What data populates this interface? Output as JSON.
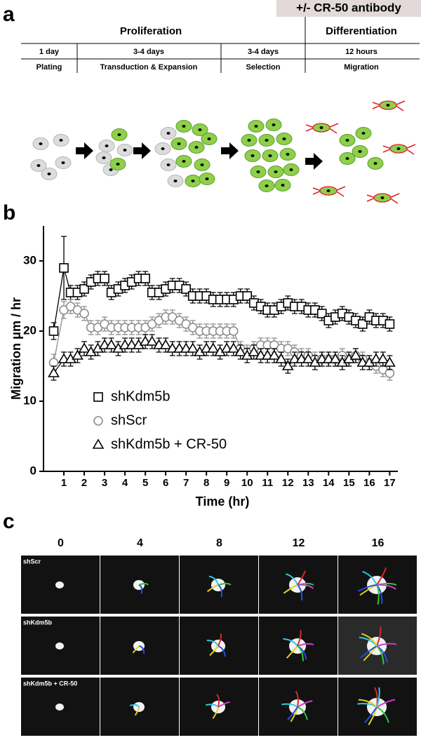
{
  "panel_a": {
    "label": "a",
    "banner": "+/- CR-50 antibody",
    "phases": [
      "Proliferation",
      "Differentiation"
    ],
    "steps": [
      {
        "duration": "1 day",
        "name": "Plating"
      },
      {
        "duration": "3-4 days",
        "name": "Transduction & Expansion"
      },
      {
        "duration": "3-4 days",
        "name": "Selection"
      },
      {
        "duration": "12 hours",
        "name": "Migration"
      }
    ]
  },
  "chart_data": {
    "type": "line",
    "panel_label": "b",
    "xlabel": "Time (hr)",
    "ylabel": "Migration μm / hr",
    "x": [
      0.5,
      1,
      1.33,
      1.67,
      2,
      2.33,
      2.67,
      3,
      3.33,
      3.67,
      4,
      4.33,
      4.67,
      5,
      5.33,
      5.67,
      6,
      6.33,
      6.67,
      7,
      7.33,
      7.67,
      8,
      8.33,
      8.67,
      9,
      9.33,
      9.67,
      10,
      10.33,
      10.67,
      11,
      11.33,
      11.67,
      12,
      12.33,
      12.67,
      13,
      13.33,
      13.67,
      14,
      14.33,
      14.67,
      15,
      15.33,
      15.67,
      16,
      16.33,
      16.67,
      17
    ],
    "series": [
      {
        "name": "shKdm5b",
        "color": "#000000",
        "marker": "square",
        "values": [
          20,
          29,
          25.5,
          25.5,
          26,
          27,
          27.5,
          27.5,
          25.5,
          26,
          26.5,
          27,
          27.5,
          27.5,
          25.5,
          25.5,
          26,
          26.5,
          26.5,
          26,
          25,
          25,
          25,
          24.5,
          24.5,
          24.5,
          24.5,
          25,
          25,
          24,
          23.5,
          23,
          23,
          23.5,
          24,
          23.5,
          23.5,
          23,
          23,
          22.5,
          21.5,
          22,
          22.5,
          22,
          21.5,
          21,
          22,
          21.5,
          21.5,
          21
        ],
        "errors": [
          1.2,
          4.5,
          1,
          1,
          1,
          1,
          1,
          1,
          1,
          1,
          1,
          1,
          1,
          1,
          1,
          1,
          1,
          1,
          1,
          1,
          1,
          1,
          1,
          1,
          1,
          1,
          1,
          1,
          1,
          1,
          1,
          1,
          1,
          1,
          1,
          1,
          1,
          1,
          1,
          1,
          1,
          1,
          1,
          1,
          1,
          1,
          1,
          1,
          1,
          1
        ]
      },
      {
        "name": "shScr",
        "color": "#8c8c8c",
        "marker": "circle",
        "values": [
          15.5,
          23,
          23.5,
          23,
          22.5,
          20.5,
          20.5,
          21,
          20.5,
          20.5,
          20.5,
          20.5,
          20.5,
          20.5,
          21,
          21.5,
          22,
          22,
          21.5,
          21,
          20.5,
          20,
          20,
          20,
          20,
          20,
          20,
          17.5,
          17,
          17.5,
          18,
          18,
          18,
          17.5,
          17.5,
          17,
          16.5,
          16.5,
          16,
          16,
          16,
          16,
          16.5,
          16,
          16.5,
          16,
          15.5,
          15,
          14.5,
          14
        ],
        "errors": [
          1.2,
          1.2,
          1,
          1,
          1,
          1,
          1,
          1,
          1,
          1,
          1,
          1,
          1,
          1,
          1,
          1,
          1,
          1,
          1,
          1,
          1,
          1,
          1,
          1,
          1,
          1,
          1,
          1,
          1,
          1,
          1,
          1,
          1,
          1,
          1,
          1,
          1,
          1,
          1,
          1,
          1,
          1,
          1,
          1,
          1,
          1,
          1,
          1,
          1,
          1
        ]
      },
      {
        "name": "shKdm5b + CR-50",
        "color": "#000000",
        "marker": "triangle",
        "values": [
          14,
          16,
          16,
          16.5,
          17.5,
          17,
          17.5,
          18,
          18,
          17.5,
          18,
          18,
          18,
          18.5,
          18.5,
          18,
          18,
          17.5,
          17.5,
          17.5,
          17.5,
          17,
          17.5,
          17.5,
          17,
          17.5,
          17.5,
          17,
          16.5,
          17,
          16.5,
          16.5,
          16.5,
          16,
          15,
          16,
          16,
          16,
          15.5,
          16,
          16,
          16,
          15.5,
          16,
          16.5,
          15.5,
          15.5,
          16,
          16,
          15.5
        ],
        "errors": [
          1,
          1,
          1,
          1,
          1,
          1,
          1,
          1,
          1,
          1,
          1,
          1,
          1,
          1,
          1,
          1,
          1,
          1,
          1,
          1,
          1,
          1,
          1,
          1,
          1,
          1,
          1,
          1,
          1,
          1,
          1,
          1,
          1,
          1,
          1,
          1,
          1,
          1,
          1,
          1,
          1,
          1,
          1,
          1,
          1,
          1,
          1,
          1,
          1,
          1
        ]
      }
    ],
    "xlim": [
      0,
      17.4
    ],
    "xticks": [
      1,
      2,
      3,
      4,
      5,
      6,
      7,
      8,
      9,
      10,
      11,
      12,
      13,
      14,
      15,
      16,
      17
    ],
    "ylim": [
      0,
      35
    ],
    "yticks": [
      0,
      10,
      20,
      30
    ],
    "grid": false
  },
  "panel_c": {
    "label": "c",
    "timepoints": [
      "0",
      "4",
      "8",
      "12",
      "16"
    ],
    "rows": [
      "shScr",
      "shKdm5b",
      "shKdm5b + CR-50"
    ]
  }
}
